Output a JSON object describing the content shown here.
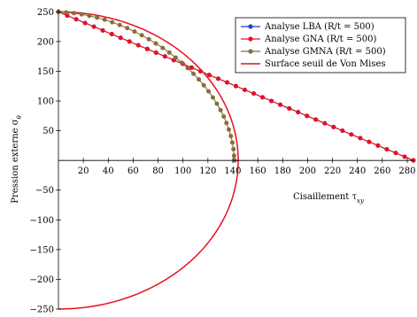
{
  "chart_data": {
    "type": "line",
    "xlabel": "Cisaillement τxy",
    "xlabel_parts": {
      "main": "Cisaillement τ",
      "sub": "xy"
    },
    "ylabel": "Pression externe σθ",
    "ylabel_parts": {
      "main": "Pression externe σ",
      "sub": "θ"
    },
    "xlim": [
      0,
      285
    ],
    "ylim": [
      -250,
      255
    ],
    "xticks": [
      20,
      40,
      60,
      80,
      100,
      120,
      140,
      160,
      180,
      200,
      220,
      240,
      260,
      280
    ],
    "yticks": [
      -250,
      -200,
      -150,
      -100,
      -50,
      50,
      100,
      150,
      200,
      250
    ],
    "xtick_labels": [
      "20",
      "40",
      "60",
      "80",
      "100",
      "120",
      "140",
      "160",
      "180",
      "200",
      "220",
      "240",
      "260",
      "280"
    ],
    "ytick_labels": [
      "−250",
      "−200",
      "−150",
      "−100",
      "−50",
      "50",
      "100",
      "150",
      "200",
      "250"
    ],
    "grid": false,
    "legend_position": "top-right",
    "legend": [
      {
        "label": "Analyse LBA (R/t = 500)",
        "color": "#1f3fd8",
        "marker": "circle"
      },
      {
        "label": "Analyse GNA (R/t = 500)",
        "color": "#e8101e",
        "marker": "circle"
      },
      {
        "label": "Analyse GMNA (R/t = 500)",
        "color": "#8a6c3a",
        "marker": "circle"
      },
      {
        "label": "Surface seuil de Von Mises",
        "color": "#e8101e",
        "marker": "none"
      }
    ],
    "series": [
      {
        "name": "Analyse LBA (R/t = 500)",
        "color": "#1f3fd8",
        "x": [
          0,
          7.1,
          14.3,
          21.4,
          28.5,
          35.6,
          42.8,
          49.9,
          57.0,
          64.1,
          71.3,
          78.4,
          85.5,
          92.6,
          99.8,
          106.9,
          114.0,
          121.1,
          128.3,
          135.4,
          142.5,
          149.6,
          156.8,
          163.9,
          171.0,
          178.1,
          185.3,
          192.4,
          199.5,
          206.6,
          213.8,
          220.9,
          228.0,
          235.1,
          242.3,
          249.4,
          256.5,
          263.6,
          270.8,
          277.9,
          285.0
        ],
        "y": [
          250.0,
          243.7,
          237.5,
          231.2,
          225.0,
          218.7,
          212.5,
          206.2,
          200.0,
          193.7,
          187.5,
          181.2,
          175.0,
          168.7,
          162.5,
          156.2,
          150.0,
          143.7,
          137.5,
          131.2,
          125.0,
          118.7,
          112.5,
          106.2,
          100.0,
          93.7,
          87.5,
          81.2,
          75.0,
          68.7,
          62.5,
          56.2,
          50.0,
          43.7,
          37.5,
          31.2,
          25.0,
          18.7,
          12.5,
          6.2,
          0.0
        ]
      },
      {
        "name": "Analyse GNA (R/t = 500)",
        "color": "#e8101e",
        "x": [
          0,
          7.1,
          14.3,
          21.4,
          28.5,
          35.6,
          42.8,
          49.9,
          57.0,
          64.1,
          71.3,
          78.4,
          85.5,
          92.6,
          99.8,
          106.9,
          114.0,
          121.1,
          128.3,
          135.4,
          142.5,
          149.6,
          156.8,
          163.9,
          171.0,
          178.1,
          185.3,
          192.4,
          199.5,
          206.6,
          213.8,
          220.9,
          228.0,
          235.1,
          242.3,
          249.4,
          256.5,
          263.6,
          270.8,
          277.9,
          285.0
        ],
        "y": [
          250.0,
          243.7,
          237.5,
          231.2,
          225.0,
          218.7,
          212.5,
          206.2,
          200.0,
          193.7,
          187.5,
          181.2,
          175.0,
          168.7,
          162.5,
          156.2,
          150.0,
          143.7,
          137.5,
          131.2,
          125.0,
          118.7,
          112.5,
          106.2,
          100.0,
          93.7,
          87.5,
          81.2,
          75.0,
          68.7,
          62.5,
          56.2,
          50.0,
          43.7,
          37.5,
          31.2,
          25.0,
          18.7,
          12.5,
          6.2,
          0.0
        ]
      },
      {
        "name": "Analyse GMNA (R/t = 500)",
        "color": "#8a6c3a",
        "x": [
          0.0,
          6.2,
          12.4,
          18.6,
          24.8,
          31.0,
          37.1,
          43.2,
          49.2,
          55.2,
          61.1,
          66.9,
          72.6,
          78.2,
          83.7,
          89.0,
          94.1,
          99.1,
          103.8,
          108.4,
          112.7,
          116.7,
          120.5,
          124.0,
          127.2,
          130.1,
          132.7,
          134.9,
          136.8,
          138.4,
          139.6,
          140.5,
          141.0,
          141.5
        ],
        "y": [
          250.0,
          249.0,
          247.7,
          245.8,
          243.3,
          240.3,
          236.7,
          232.5,
          227.8,
          222.6,
          216.8,
          210.6,
          203.9,
          196.8,
          189.3,
          181.4,
          173.0,
          164.3,
          155.3,
          145.9,
          136.3,
          126.4,
          116.3,
          105.9,
          95.4,
          84.7,
          73.9,
          63.0,
          52.0,
          41.0,
          30.0,
          19.0,
          8.0,
          0.0
        ]
      },
      {
        "name": "Surface seuil de Von Mises",
        "color": "#e8101e",
        "curve": "ellipse",
        "x_semi_axis": 144.3,
        "y_semi_axis": 250
      }
    ]
  }
}
